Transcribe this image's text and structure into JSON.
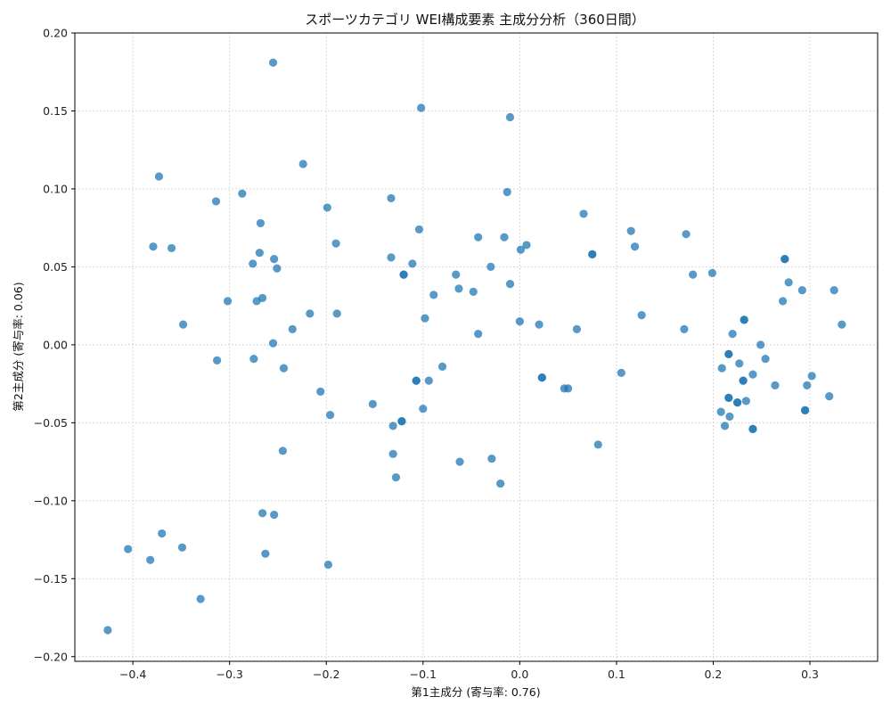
{
  "chart_data": {
    "type": "scatter",
    "title": "スポーツカテゴリ WEI構成要素 主成分分析（360日間）",
    "xlabel": "第1主成分 (寄与率: 0.76)",
    "ylabel": "第2主成分 (寄与率: 0.06)",
    "xlim": [
      -0.46,
      0.37
    ],
    "ylim": [
      -0.203,
      0.2
    ],
    "xticks": [
      -0.4,
      -0.3,
      -0.2,
      -0.1,
      0.0,
      0.1,
      0.2,
      0.3
    ],
    "xtick_labels": [
      "−0.4",
      "−0.3",
      "−0.2",
      "−0.1",
      "0.0",
      "0.1",
      "0.2",
      "0.3"
    ],
    "yticks": [
      -0.2,
      -0.15,
      -0.1,
      -0.05,
      0.0,
      0.05,
      0.1,
      0.15,
      0.2
    ],
    "ytick_labels": [
      "−0.20",
      "−0.15",
      "−0.10",
      "−0.05",
      "0.00",
      "0.05",
      "0.10",
      "0.15",
      "0.20"
    ],
    "grid": true,
    "color": "#1f77b4",
    "points": [
      [
        -0.255,
        0.181
      ],
      [
        -0.102,
        0.152
      ],
      [
        -0.01,
        0.146
      ],
      [
        -0.224,
        0.116
      ],
      [
        -0.373,
        0.108
      ],
      [
        -0.287,
        0.097
      ],
      [
        -0.314,
        0.092
      ],
      [
        -0.133,
        0.094
      ],
      [
        -0.013,
        0.098
      ],
      [
        -0.199,
        0.088
      ],
      [
        0.066,
        0.084
      ],
      [
        -0.268,
        0.078
      ],
      [
        -0.104,
        0.074
      ],
      [
        0.115,
        0.073
      ],
      [
        0.172,
        0.071
      ],
      [
        -0.043,
        0.069
      ],
      [
        -0.016,
        0.069
      ],
      [
        -0.19,
        0.065
      ],
      [
        0.007,
        0.064
      ],
      [
        0.119,
        0.063
      ],
      [
        -0.379,
        0.063
      ],
      [
        -0.36,
        0.062
      ],
      [
        0.001,
        0.061
      ],
      [
        -0.269,
        0.059
      ],
      [
        0.075,
        0.058
      ],
      [
        0.075,
        0.058
      ],
      [
        -0.133,
        0.056
      ],
      [
        -0.254,
        0.055
      ],
      [
        0.274,
        0.055
      ],
      [
        0.274,
        0.055
      ],
      [
        -0.276,
        0.052
      ],
      [
        -0.111,
        0.052
      ],
      [
        -0.251,
        0.049
      ],
      [
        -0.03,
        0.05
      ],
      [
        0.199,
        0.046
      ],
      [
        -0.12,
        0.045
      ],
      [
        -0.12,
        0.045
      ],
      [
        -0.066,
        0.045
      ],
      [
        0.179,
        0.045
      ],
      [
        0.278,
        0.04
      ],
      [
        -0.01,
        0.039
      ],
      [
        -0.063,
        0.036
      ],
      [
        -0.048,
        0.034
      ],
      [
        0.292,
        0.035
      ],
      [
        0.325,
        0.035
      ],
      [
        -0.089,
        0.032
      ],
      [
        -0.266,
        0.03
      ],
      [
        -0.302,
        0.028
      ],
      [
        -0.272,
        0.028
      ],
      [
        0.272,
        0.028
      ],
      [
        -0.217,
        0.02
      ],
      [
        -0.189,
        0.02
      ],
      [
        0.126,
        0.019
      ],
      [
        -0.098,
        0.017
      ],
      [
        0.232,
        0.016
      ],
      [
        0.232,
        0.016
      ],
      [
        0.0,
        0.015
      ],
      [
        0.02,
        0.013
      ],
      [
        -0.348,
        0.013
      ],
      [
        0.333,
        0.013
      ],
      [
        0.059,
        0.01
      ],
      [
        0.17,
        0.01
      ],
      [
        -0.235,
        0.01
      ],
      [
        0.22,
        0.007
      ],
      [
        -0.043,
        0.007
      ],
      [
        -0.255,
        0.001
      ],
      [
        0.249,
        0.0
      ],
      [
        0.216,
        -0.006
      ],
      [
        0.216,
        -0.006
      ],
      [
        -0.275,
        -0.009
      ],
      [
        0.254,
        -0.009
      ],
      [
        -0.313,
        -0.01
      ],
      [
        0.227,
        -0.012
      ],
      [
        -0.08,
        -0.014
      ],
      [
        -0.244,
        -0.015
      ],
      [
        0.209,
        -0.015
      ],
      [
        0.105,
        -0.018
      ],
      [
        0.241,
        -0.019
      ],
      [
        0.302,
        -0.02
      ],
      [
        0.023,
        -0.021
      ],
      [
        0.023,
        -0.021
      ],
      [
        0.231,
        -0.023
      ],
      [
        0.231,
        -0.023
      ],
      [
        -0.107,
        -0.023
      ],
      [
        -0.107,
        -0.023
      ],
      [
        -0.094,
        -0.023
      ],
      [
        0.264,
        -0.026
      ],
      [
        0.297,
        -0.026
      ],
      [
        0.05,
        -0.028
      ],
      [
        0.046,
        -0.028
      ],
      [
        -0.206,
        -0.03
      ],
      [
        0.32,
        -0.033
      ],
      [
        0.216,
        -0.034
      ],
      [
        0.216,
        -0.034
      ],
      [
        0.234,
        -0.036
      ],
      [
        0.225,
        -0.037
      ],
      [
        0.225,
        -0.037
      ],
      [
        -0.152,
        -0.038
      ],
      [
        -0.1,
        -0.041
      ],
      [
        0.295,
        -0.042
      ],
      [
        0.295,
        -0.042
      ],
      [
        0.208,
        -0.043
      ],
      [
        -0.196,
        -0.045
      ],
      [
        0.217,
        -0.046
      ],
      [
        -0.122,
        -0.049
      ],
      [
        -0.122,
        -0.049
      ],
      [
        -0.131,
        -0.052
      ],
      [
        0.212,
        -0.052
      ],
      [
        0.241,
        -0.054
      ],
      [
        0.241,
        -0.054
      ],
      [
        0.081,
        -0.064
      ],
      [
        -0.245,
        -0.068
      ],
      [
        -0.131,
        -0.07
      ],
      [
        -0.029,
        -0.073
      ],
      [
        -0.062,
        -0.075
      ],
      [
        -0.128,
        -0.085
      ],
      [
        -0.02,
        -0.089
      ],
      [
        -0.266,
        -0.108
      ],
      [
        -0.254,
        -0.109
      ],
      [
        -0.37,
        -0.121
      ],
      [
        -0.349,
        -0.13
      ],
      [
        -0.405,
        -0.131
      ],
      [
        -0.263,
        -0.134
      ],
      [
        -0.382,
        -0.138
      ],
      [
        -0.198,
        -0.141
      ],
      [
        -0.33,
        -0.163
      ],
      [
        -0.426,
        -0.183
      ]
    ]
  }
}
